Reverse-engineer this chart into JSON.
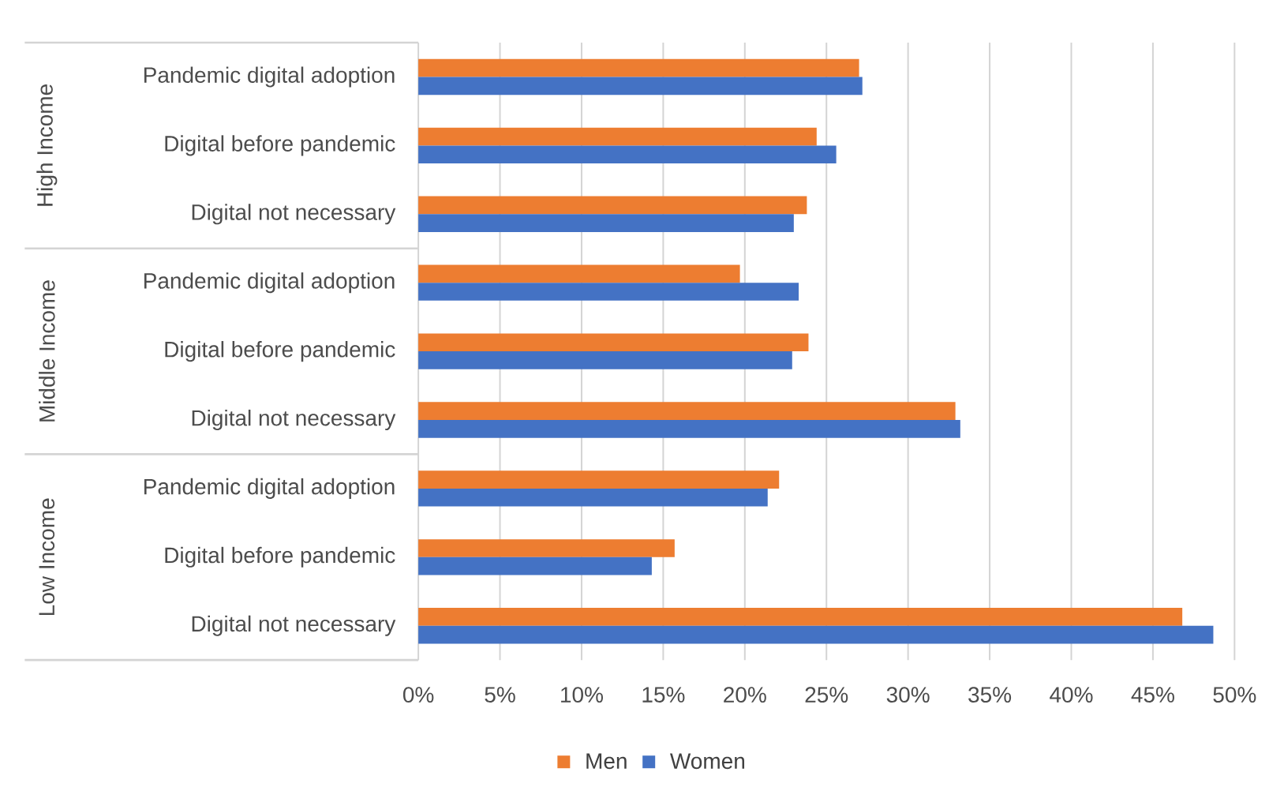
{
  "chart_data": {
    "type": "bar",
    "orientation": "horizontal",
    "categories": [
      "Pandemic digital adoption",
      "Digital before pandemic",
      "Digital not necessary",
      "Pandemic digital adoption",
      "Digital before pandemic",
      "Digital not necessary",
      "Pandemic digital adoption",
      "Digital before pandemic",
      "Digital not necessary"
    ],
    "series": [
      {
        "name": "Men",
        "color": "#ed7d31",
        "values": [
          27.0,
          24.4,
          23.8,
          19.7,
          23.9,
          32.9,
          22.1,
          15.7,
          46.8
        ]
      },
      {
        "name": "Women",
        "color": "#4472c4",
        "values": [
          27.2,
          25.6,
          23.0,
          23.3,
          22.9,
          33.2,
          21.4,
          14.3,
          48.7
        ]
      }
    ],
    "annotations": [
      "High Income",
      "Middle Income",
      "Low Income"
    ],
    "xlim": [
      0,
      50
    ],
    "xticks": [
      {
        "value": 0,
        "label": "0%"
      },
      {
        "value": 5,
        "label": "5%"
      },
      {
        "value": 10,
        "label": "10%"
      },
      {
        "value": 15,
        "label": "15%"
      },
      {
        "value": 20,
        "label": "20%"
      },
      {
        "value": 25,
        "label": "25%"
      },
      {
        "value": 30,
        "label": "30%"
      },
      {
        "value": 35,
        "label": "35%"
      },
      {
        "value": 40,
        "label": "40%"
      },
      {
        "value": 45,
        "label": "45%"
      },
      {
        "value": 50,
        "label": "50%"
      }
    ],
    "grid": "x",
    "legend": "bottom"
  }
}
